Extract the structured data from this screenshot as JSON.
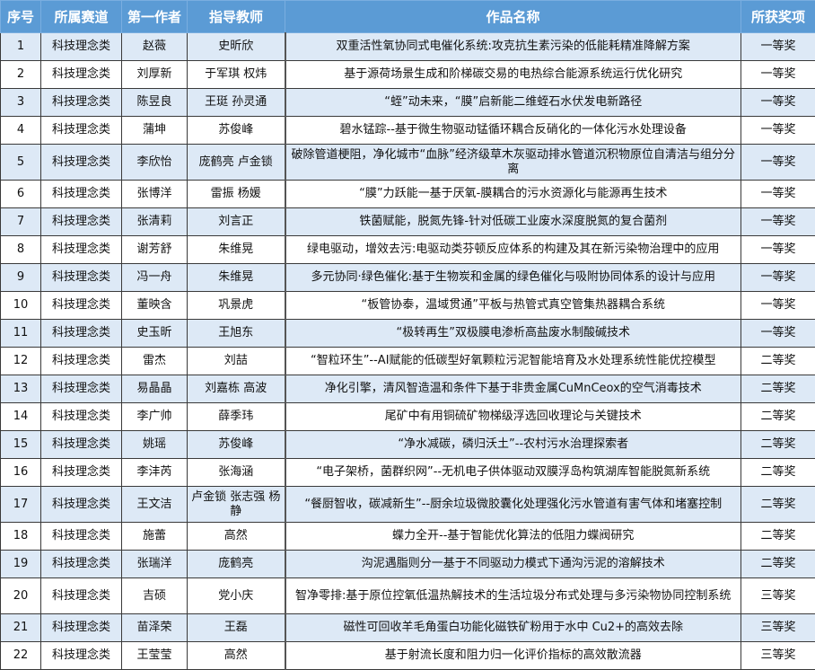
{
  "headers": [
    "序号",
    "所属赛道",
    "第一作者",
    "指导教师",
    "作品名称",
    "所获奖项"
  ],
  "rows": [
    [
      "1",
      "科技理念类",
      "赵薇",
      "史昕欣",
      "双重活性氧协同式电催化系统:攻克抗生素污染的低能耗精准降解方案",
      "一等奖"
    ],
    [
      "2",
      "科技理念类",
      "刘厚新",
      "于军琪  权炜",
      "基于源荷场景生成和阶梯碳交易的电热综合能源系统运行优化研究",
      "一等奖"
    ],
    [
      "3",
      "科技理念类",
      "陈昱良",
      "王珽  孙灵通",
      "“蛭”动未来，“膜”启新能二维蛭石水伏发电新路径",
      "一等奖"
    ],
    [
      "4",
      "科技理念类",
      "蒲坤",
      "苏俊峰",
      "碧水锰踪--基于微生物驱动锰循环耦合反硝化的一体化污水处理设备",
      "一等奖"
    ],
    [
      "5",
      "科技理念类",
      "李欣怡",
      "庞鹤亮  卢金锁",
      "破除管道梗阻，净化城市“血脉”经济级草木灰驱动排水管道沉积物原位自清洁与组分分离",
      "一等奖"
    ],
    [
      "6",
      "科技理念类",
      "张博洋",
      "雷振  杨媛",
      "“膜”力跃能一基于厌氧-膜耦合的污水资源化与能源再生技术",
      "一等奖"
    ],
    [
      "7",
      "科技理念类",
      "张清莉",
      "刘言正",
      "铁菌赋能，脱氮先锋-针对低碳工业废水深度脱氮的复合菌剂",
      "一等奖"
    ],
    [
      "8",
      "科技理念类",
      "谢芳舒",
      "朱维晃",
      "绿电驱动，增效去污:电驱动类芬顿反应体系的构建及其在新污染物治理中的应用",
      "一等奖"
    ],
    [
      "9",
      "科技理念类",
      "冯一舟",
      "朱维晃",
      "多元协同·绿色催化:基于生物炭和金属的绿色催化与吸附协同体系的设计与应用",
      "一等奖"
    ],
    [
      "10",
      "科技理念类",
      "董映含",
      "巩景虎",
      "“板管协泰，温域贯通”平板与热管式真空管集热器耦合系统",
      "一等奖"
    ],
    [
      "11",
      "科技理念类",
      "史玉昕",
      "王旭东",
      "“极转再生”双极膜电渗析高盐废水制酸碱技术",
      "一等奖"
    ],
    [
      "12",
      "科技理念类",
      "雷杰",
      "刘喆",
      "“智粒环生”--AI赋能的低碳型好氧颗粒污泥智能培育及水处理系统性能优控模型",
      "二等奖"
    ],
    [
      "13",
      "科技理念类",
      "易晶晶",
      "刘嘉栋  高波",
      "净化引擎，清风智造温和条件下基于非贵金属CuMnCeox的空气消毒技术",
      "二等奖"
    ],
    [
      "14",
      "科技理念类",
      "李广帅",
      "薛季玮",
      "尾矿中有用铜硫矿物梯级浮选回收理论与关键技术",
      "二等奖"
    ],
    [
      "15",
      "科技理念类",
      "姚瑶",
      "苏俊峰",
      "“净水减碳，磷归沃土”--农村污水治理探索者",
      "二等奖"
    ],
    [
      "16",
      "科技理念类",
      "李沣芮",
      "张海涵",
      "“电子架桥，菌群织网”--无机电子供体驱动双膜浮岛构筑湖库智能脱氮新系统",
      "二等奖"
    ],
    [
      "17",
      "科技理念类",
      "王文洁",
      "卢金锁  张志强 杨静",
      "“餐厨智收，碳减新生”--厨余垃圾微胶囊化处理强化污水管道有害气体和堵塞控制",
      "二等奖"
    ],
    [
      "18",
      "科技理念类",
      "施蕾",
      "高然",
      "蝶力全开--基于智能优化算法的低阻力蝶阀研究",
      "二等奖"
    ],
    [
      "19",
      "科技理念类",
      "张瑞洋",
      "庞鹤亮",
      "沟泥遇脂则分一基于不同驱动力模式下通沟污泥的溶解技术",
      "二等奖"
    ],
    [
      "20",
      "科技理念类",
      "吉硕",
      "党小庆",
      "智净零排:基于原位控氧低温热解技术的生活垃圾分布式处理与多污染物协同控制系统",
      "三等奖"
    ],
    [
      "21",
      "科技理念类",
      "苗泽荣",
      "王磊",
      "磁性可回收羊毛角蛋白功能化磁铁矿粉用于水中 Cu2+的高效去除",
      "三等奖"
    ],
    [
      "22",
      "科技理念类",
      "王莹莹",
      "高然",
      "基于射流长度和阻力归一化评价指标的高效散流器",
      "三等奖"
    ]
  ],
  "colors": {
    "header_bg": "#5b9bd5",
    "stripe": "#dde9f6"
  }
}
